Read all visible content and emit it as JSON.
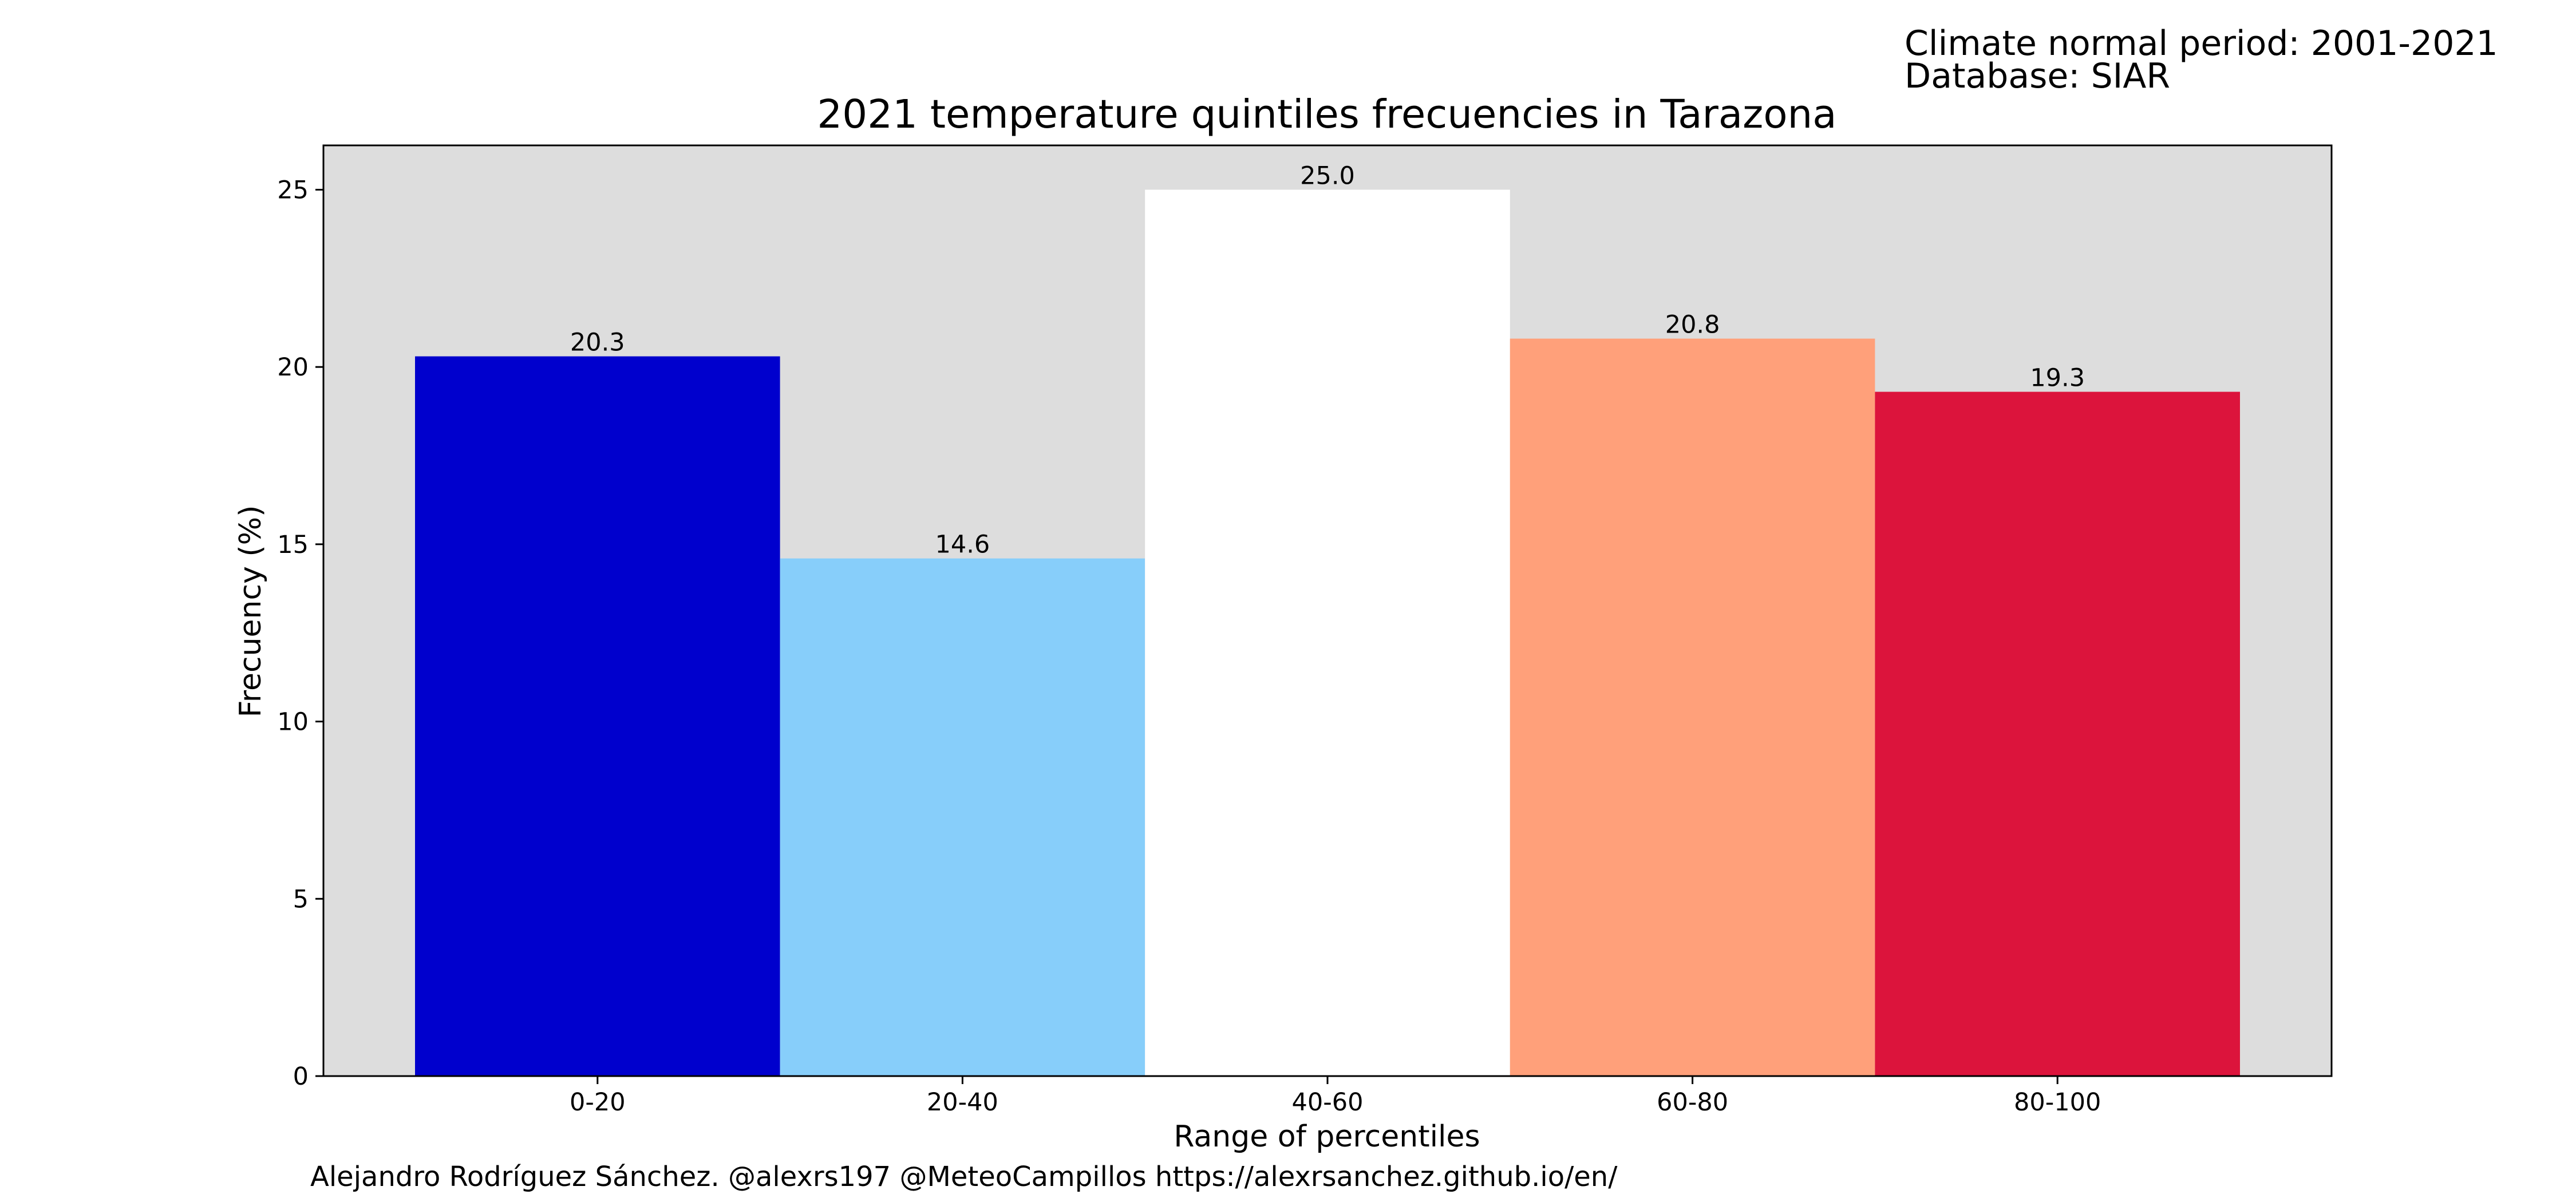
{
  "meta": {
    "period": "Climate normal period: 2001-2021",
    "database": "Database: SIAR"
  },
  "credit": "Alejandro Rodríguez Sánchez. @alexrs197 @MeteoCampillos   https://alexrsanchez.github.io/en/",
  "chart_data": {
    "type": "bar",
    "title": "2021 temperature quintiles frecuencies in Tarazona",
    "xlabel": "Range of percentiles",
    "ylabel": "Frecuency (%)",
    "categories": [
      "0-20",
      "20-40",
      "40-60",
      "60-80",
      "80-100"
    ],
    "values": [
      20.3,
      14.6,
      25.0,
      20.8,
      19.3
    ],
    "value_labels": [
      "20.3",
      "14.6",
      "25.0",
      "20.8",
      "19.3"
    ],
    "colors": [
      "#0000cd",
      "#87cefa",
      "#ffffff",
      "#ffa07a",
      "#dc143c"
    ],
    "yticks": [
      0,
      5,
      10,
      15,
      20,
      25
    ],
    "ylim": [
      0,
      26.25
    ],
    "plot_background": "#dddddd",
    "grid": false,
    "legend": "none"
  }
}
